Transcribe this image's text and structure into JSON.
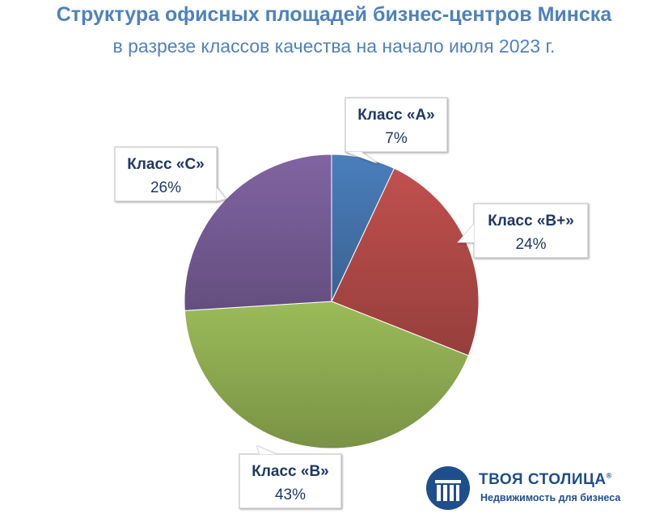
{
  "chart_data": {
    "type": "pie",
    "title": "Структура офисных площадей бизнес-центров Минска",
    "subtitle": "в разрезе классов качества на начало июля 2023 г.",
    "slices": [
      {
        "label": "Класс «А»",
        "value": 7,
        "value_label": "7%",
        "color": "#4a7ebb"
      },
      {
        "label": "Класс «B+»",
        "value": 24,
        "value_label": "24%",
        "color": "#c0504d"
      },
      {
        "label": "Класс «B»",
        "value": 43,
        "value_label": "43%",
        "color": "#9bbb59"
      },
      {
        "label": "Класс «C»",
        "value": 26,
        "value_label": "26%",
        "color": "#8064a2"
      }
    ]
  },
  "logo": {
    "name": "ТВОЯ СТОЛИЦА",
    "registered": "®",
    "tagline": "Недвижимость для бизнеса",
    "color": "#1f4e8c"
  }
}
